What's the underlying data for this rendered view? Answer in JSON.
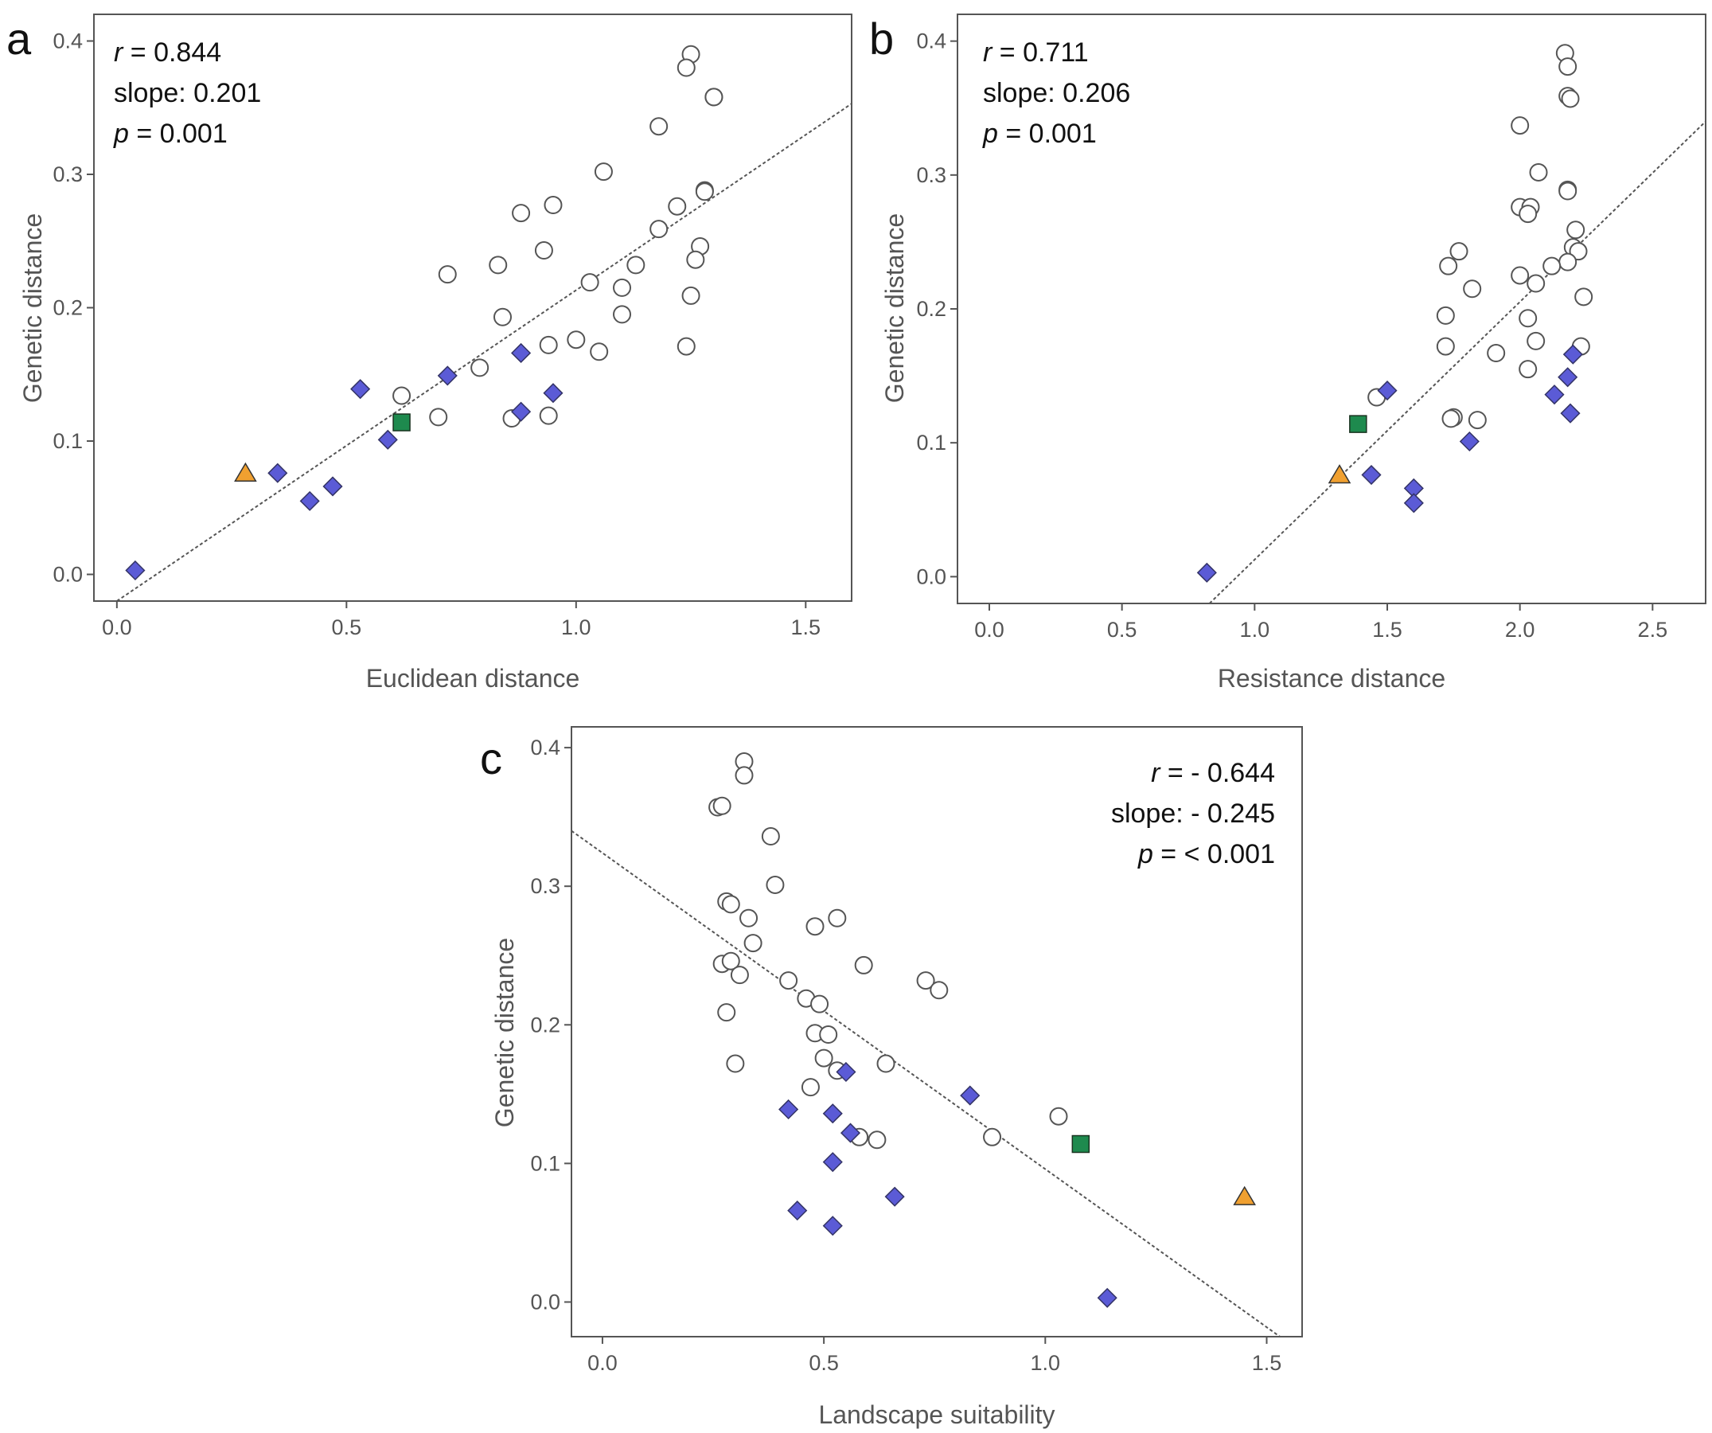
{
  "colors": {
    "circle_fill": "#ffffff",
    "circle_stroke": "#555555",
    "diamond": "#5b5bd6",
    "square": "#1e8a4e",
    "triangle": "#f0a030",
    "trend": "#555555",
    "frame": "#555555"
  },
  "chart_data": [
    {
      "type": "scatter",
      "panel": "a",
      "title": "",
      "xlabel": "Euclidean distance",
      "ylabel": "Genetic distance",
      "xlim": [
        -0.05,
        1.6
      ],
      "ylim": [
        -0.02,
        0.42
      ],
      "xticks": [
        "0.0",
        "0.5",
        "1.0",
        "1.5"
      ],
      "xtick_values": [
        0.0,
        0.5,
        1.0,
        1.5
      ],
      "yticks": [
        "0.0",
        "0.1",
        "0.2",
        "0.3",
        "0.4"
      ],
      "ytick_values": [
        0.0,
        0.1,
        0.2,
        0.3,
        0.4
      ],
      "stats": {
        "r_label": "r",
        "r_text": " = 0.844",
        "slope_text": "slope:  0.201",
        "p_label": "p",
        "p_text": " = 0.001",
        "placement": "top-left"
      },
      "trend_line": {
        "x1": 0.0,
        "y1": -0.02,
        "x2": 1.6,
        "y2": 0.353
      },
      "series": [
        {
          "name": "circles",
          "marker": "circle",
          "points": [
            [
              1.25,
              0.39
            ],
            [
              1.24,
              0.38
            ],
            [
              1.3,
              0.358
            ],
            [
              1.3,
              0.358
            ],
            [
              1.18,
              0.336
            ],
            [
              1.06,
              0.302
            ],
            [
              1.28,
              0.288
            ],
            [
              1.28,
              0.287
            ],
            [
              0.88,
              0.271
            ],
            [
              0.95,
              0.277
            ],
            [
              1.22,
              0.276
            ],
            [
              1.18,
              0.259
            ],
            [
              1.27,
              0.246
            ],
            [
              1.26,
              0.236
            ],
            [
              0.93,
              0.243
            ],
            [
              0.72,
              0.225
            ],
            [
              0.83,
              0.232
            ],
            [
              1.13,
              0.232
            ],
            [
              1.03,
              0.219
            ],
            [
              1.1,
              0.215
            ],
            [
              1.25,
              0.209
            ],
            [
              0.84,
              0.193
            ],
            [
              1.1,
              0.195
            ],
            [
              0.94,
              0.172
            ],
            [
              1.0,
              0.176
            ],
            [
              1.05,
              0.167
            ],
            [
              1.24,
              0.171
            ],
            [
              0.79,
              0.155
            ],
            [
              0.62,
              0.134
            ],
            [
              0.7,
              0.118
            ],
            [
              0.86,
              0.117
            ],
            [
              0.94,
              0.119
            ]
          ]
        },
        {
          "name": "diamonds",
          "marker": "diamond",
          "points": [
            [
              0.04,
              0.003
            ],
            [
              0.35,
              0.076
            ],
            [
              0.42,
              0.055
            ],
            [
              0.47,
              0.066
            ],
            [
              0.53,
              0.139
            ],
            [
              0.59,
              0.101
            ],
            [
              0.72,
              0.149
            ],
            [
              0.88,
              0.166
            ],
            [
              0.88,
              0.122
            ],
            [
              0.95,
              0.136
            ]
          ]
        },
        {
          "name": "square",
          "marker": "square",
          "points": [
            [
              0.62,
              0.114
            ]
          ]
        },
        {
          "name": "triangle",
          "marker": "triangle",
          "points": [
            [
              0.28,
              0.076
            ]
          ]
        }
      ]
    },
    {
      "type": "scatter",
      "panel": "b",
      "title": "",
      "xlabel": "Resistance distance",
      "ylabel": "Genetic distance",
      "xlim": [
        -0.12,
        2.7
      ],
      "ylim": [
        -0.02,
        0.42
      ],
      "xticks": [
        "0.0",
        "0.5",
        "1.0",
        "1.5",
        "2.0",
        "2.5"
      ],
      "xtick_values": [
        0.0,
        0.5,
        1.0,
        1.5,
        2.0,
        2.5
      ],
      "yticks": [
        "0.0",
        "0.1",
        "0.2",
        "0.3",
        "0.4"
      ],
      "ytick_values": [
        0.0,
        0.1,
        0.2,
        0.3,
        0.4
      ],
      "stats": {
        "r_label": "r",
        "r_text": " = 0.711",
        "slope_text": "slope: 0.206",
        "p_label": "p",
        "p_text": " = 0.001",
        "placement": "top-left"
      },
      "trend_line": {
        "x1": 0.83,
        "y1": -0.02,
        "x2": 2.7,
        "y2": 0.34
      },
      "series": [
        {
          "name": "circles",
          "marker": "circle",
          "points": [
            [
              2.17,
              0.391
            ],
            [
              2.18,
              0.381
            ],
            [
              2.18,
              0.359
            ],
            [
              2.19,
              0.357
            ],
            [
              2.0,
              0.337
            ],
            [
              2.07,
              0.302
            ],
            [
              2.18,
              0.289
            ],
            [
              2.18,
              0.288
            ],
            [
              2.0,
              0.276
            ],
            [
              2.04,
              0.276
            ],
            [
              2.03,
              0.271
            ],
            [
              2.21,
              0.259
            ],
            [
              2.2,
              0.246
            ],
            [
              2.22,
              0.243
            ],
            [
              1.77,
              0.243
            ],
            [
              2.18,
              0.235
            ],
            [
              1.73,
              0.232
            ],
            [
              2.12,
              0.232
            ],
            [
              2.0,
              0.225
            ],
            [
              2.06,
              0.219
            ],
            [
              1.82,
              0.215
            ],
            [
              2.24,
              0.209
            ],
            [
              1.72,
              0.195
            ],
            [
              2.03,
              0.193
            ],
            [
              2.06,
              0.176
            ],
            [
              1.72,
              0.172
            ],
            [
              1.91,
              0.167
            ],
            [
              2.23,
              0.172
            ],
            [
              2.03,
              0.155
            ],
            [
              1.46,
              0.134
            ],
            [
              1.75,
              0.119
            ],
            [
              1.74,
              0.118
            ],
            [
              1.84,
              0.117
            ]
          ]
        },
        {
          "name": "diamonds",
          "marker": "diamond",
          "points": [
            [
              0.82,
              0.003
            ],
            [
              1.44,
              0.076
            ],
            [
              1.6,
              0.066
            ],
            [
              1.6,
              0.055
            ],
            [
              1.5,
              0.139
            ],
            [
              1.81,
              0.101
            ],
            [
              2.13,
              0.136
            ],
            [
              2.18,
              0.149
            ],
            [
              2.2,
              0.166
            ],
            [
              2.19,
              0.122
            ]
          ]
        },
        {
          "name": "square",
          "marker": "square",
          "points": [
            [
              1.39,
              0.114
            ]
          ]
        },
        {
          "name": "triangle",
          "marker": "triangle",
          "points": [
            [
              1.32,
              0.076
            ]
          ]
        }
      ]
    },
    {
      "type": "scatter",
      "panel": "c",
      "title": "",
      "xlabel": "Landscape suitability",
      "ylabel": "Genetic distance",
      "xlim": [
        -0.07,
        1.58
      ],
      "ylim": [
        -0.025,
        0.415
      ],
      "xticks": [
        "0.0",
        "0.5",
        "1.0",
        "1.5"
      ],
      "xtick_values": [
        0.0,
        0.5,
        1.0,
        1.5
      ],
      "yticks": [
        "0.0",
        "0.1",
        "0.2",
        "0.3",
        "0.4"
      ],
      "ytick_values": [
        0.0,
        0.1,
        0.2,
        0.3,
        0.4
      ],
      "stats": {
        "r_label": "r",
        "r_text": " = - 0.644",
        "slope_text": "slope: -  0.245",
        "p_label": "p",
        "p_text": " =  < 0.001",
        "placement": "top-right"
      },
      "trend_line": {
        "x1": -0.07,
        "y1": 0.34,
        "x2": 1.53,
        "y2": -0.025
      },
      "series": [
        {
          "name": "circles",
          "marker": "circle",
          "points": [
            [
              0.32,
              0.39
            ],
            [
              0.32,
              0.38
            ],
            [
              0.26,
              0.357
            ],
            [
              0.27,
              0.358
            ],
            [
              0.38,
              0.336
            ],
            [
              0.39,
              0.301
            ],
            [
              0.28,
              0.289
            ],
            [
              0.29,
              0.287
            ],
            [
              0.33,
              0.277
            ],
            [
              0.48,
              0.271
            ],
            [
              0.53,
              0.277
            ],
            [
              0.34,
              0.259
            ],
            [
              0.27,
              0.244
            ],
            [
              0.29,
              0.246
            ],
            [
              0.31,
              0.236
            ],
            [
              0.59,
              0.243
            ],
            [
              0.42,
              0.232
            ],
            [
              0.73,
              0.232
            ],
            [
              0.46,
              0.219
            ],
            [
              0.49,
              0.215
            ],
            [
              0.76,
              0.225
            ],
            [
              0.28,
              0.209
            ],
            [
              0.48,
              0.194
            ],
            [
              0.51,
              0.193
            ],
            [
              0.3,
              0.172
            ],
            [
              0.5,
              0.176
            ],
            [
              0.53,
              0.167
            ],
            [
              0.64,
              0.172
            ],
            [
              0.47,
              0.155
            ],
            [
              1.03,
              0.134
            ],
            [
              0.58,
              0.119
            ],
            [
              0.62,
              0.117
            ],
            [
              0.88,
              0.119
            ]
          ]
        },
        {
          "name": "diamonds",
          "marker": "diamond",
          "points": [
            [
              1.14,
              0.003
            ],
            [
              0.66,
              0.076
            ],
            [
              0.44,
              0.066
            ],
            [
              0.52,
              0.055
            ],
            [
              0.42,
              0.139
            ],
            [
              0.52,
              0.101
            ],
            [
              0.52,
              0.136
            ],
            [
              0.56,
              0.122
            ],
            [
              0.55,
              0.166
            ],
            [
              0.83,
              0.149
            ]
          ]
        },
        {
          "name": "square",
          "marker": "square",
          "points": [
            [
              1.08,
              0.114
            ]
          ]
        },
        {
          "name": "triangle",
          "marker": "triangle",
          "points": [
            [
              1.45,
              0.076
            ]
          ]
        }
      ]
    }
  ]
}
